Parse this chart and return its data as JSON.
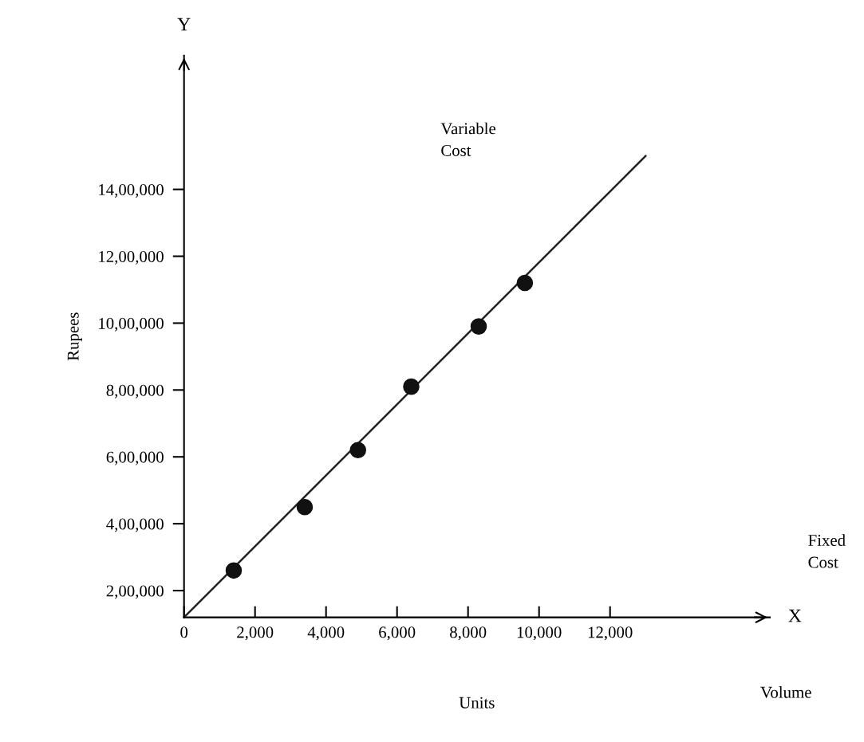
{
  "chart_data": {
    "type": "scatter",
    "xlabel": "Units",
    "ylabel": "Rupees",
    "annotations": [
      "Y",
      "X",
      "Variable\nCost",
      "Fixed\nCost",
      "Volume"
    ],
    "xlim": [
      0,
      16500
    ],
    "ylim": [
      120000,
      1800000
    ],
    "xticks": [
      0,
      {
        "value": 2000,
        "label": "2,000"
      },
      {
        "value": 4000,
        "label": "4,000"
      },
      {
        "value": 6000,
        "label": "6,000"
      },
      {
        "value": 8000,
        "label": "8,000"
      },
      {
        "value": 10000,
        "label": "10,000"
      },
      {
        "value": 12000,
        "label": "12,000"
      }
    ],
    "yticks": [
      {
        "value": 200000,
        "label": "2,00,000"
      },
      {
        "value": 400000,
        "label": "4,00,000"
      },
      {
        "value": 600000,
        "label": "6,00,000"
      },
      {
        "value": 800000,
        "label": "8,00,000"
      },
      {
        "value": 1000000,
        "label": "10,00,000"
      },
      {
        "value": 1200000,
        "label": "12,00,000"
      },
      {
        "value": 1400000,
        "label": "14,00,000"
      }
    ],
    "grid": false,
    "legend": false,
    "series": [
      {
        "color": "#111111",
        "marker": "circle",
        "x": [
          1400,
          3400,
          4900,
          6400,
          8300,
          9600
        ],
        "values": [
          260000,
          450000,
          620000,
          810000,
          990000,
          1120000
        ]
      },
      {
        "type": "line",
        "color": "#222222",
        "marker": "none",
        "line_style": "solid",
        "x": [
          0,
          13000
        ],
        "values": [
          120000,
          1500000
        ]
      }
    ]
  }
}
